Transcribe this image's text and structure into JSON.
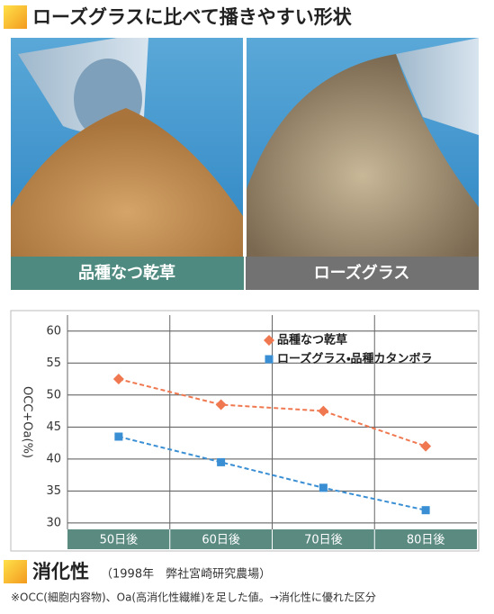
{
  "header": {
    "title": "ローズグラスに比べて播きやすい形状"
  },
  "photos": {
    "left_label": "品種なつ乾草",
    "right_label": "ローズグラス"
  },
  "chart_data": {
    "type": "line",
    "y_label": "OCC+Oa(%)",
    "categories": [
      "50日後",
      "60日後",
      "70日後",
      "80日後"
    ],
    "series": [
      {
        "name": "品種なつ乾草",
        "color": "#f07850",
        "marker": "diamond",
        "values": [
          52.5,
          48.5,
          47.5,
          42
        ]
      },
      {
        "name": "ローズグラス・品種カタンボラ",
        "color": "#3a8fd4",
        "marker": "square",
        "values": [
          43.5,
          39.5,
          35.5,
          32
        ]
      }
    ],
    "ylim": [
      29,
      62.5
    ],
    "yticks": [
      30,
      35,
      40,
      45,
      50,
      55,
      60
    ],
    "grid": true
  },
  "footer": {
    "heading": "消化性",
    "source": "（1998年　弊社宮崎研究農場）",
    "note": "※OCC(細胞内容物)、Oa(高消化性繊維)を足した値。→消化性に優れた区分"
  }
}
